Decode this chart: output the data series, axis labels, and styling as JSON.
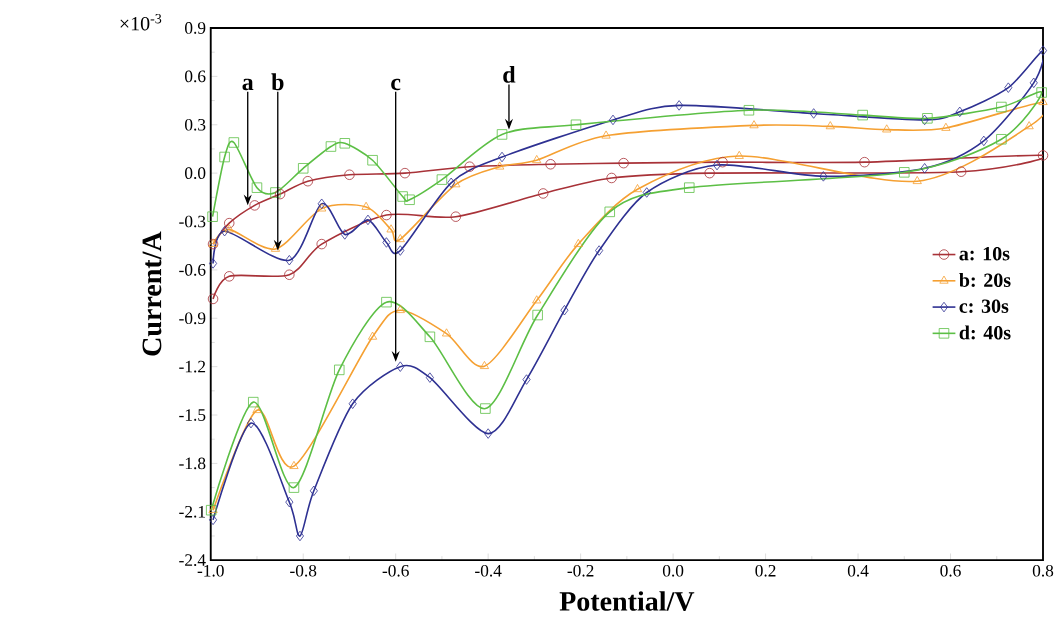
{
  "chart_data": {
    "type": "line",
    "xlabel": "Potential/V",
    "ylabel": "Current/A",
    "xlim": [
      -1.0,
      0.8
    ],
    "ylim": [
      -2.4,
      0.9
    ],
    "xticks": [
      {
        "value": -1.0,
        "label": "-1.0"
      },
      -0.8,
      -0.6,
      -0.4,
      -0.2,
      {
        "value": 0.0,
        "label": "0.0"
      },
      0.2,
      0.4,
      0.6,
      0.8
    ],
    "yticks": [
      -2.4,
      -2.1,
      -1.8,
      -1.5,
      -1.2,
      -0.9,
      -0.6,
      -0.3,
      {
        "value": 0.0,
        "label": "0.0"
      },
      0.3,
      0.6,
      0.9
    ],
    "grid": false,
    "legend": "right",
    "line_style": "solid",
    "annotations": [
      "×10$^{-3}$",
      {
        "text": "a",
        "x": -0.92,
        "y": -0.2
      },
      {
        "text": "b",
        "x": -0.855,
        "y": -0.48
      },
      {
        "text": "c",
        "x": -0.6,
        "y": -1.17
      },
      {
        "text": "d",
        "x": -0.355,
        "y": 0.27
      }
    ],
    "series": [
      {
        "name": "a: 10s",
        "color": "#a83238",
        "marker": "circle",
        "x": [
          -0.995,
          -0.96,
          -0.905,
          -0.85,
          -0.79,
          -0.7,
          -0.58,
          -0.44,
          -0.265,
          -0.107,
          0.107,
          0.414,
          0.8,
          0.623,
          0.079,
          -0.133,
          -0.281,
          -0.47,
          -0.62,
          -0.76,
          -0.83,
          -0.96,
          -0.995
        ],
        "values": [
          -0.44,
          -0.31,
          -0.2,
          -0.13,
          -0.05,
          -0.01,
          0.0,
          0.04,
          0.055,
          0.062,
          0.068,
          0.068,
          0.11,
          0.009,
          0.0,
          -0.03,
          -0.126,
          -0.27,
          -0.26,
          -0.44,
          -0.63,
          -0.64,
          -0.78
        ]
      },
      {
        "name": "b: 20s",
        "color": "#f5a032",
        "marker": "triangle",
        "x": [
          -0.995,
          -0.96,
          -0.86,
          -0.76,
          -0.664,
          -0.61,
          -0.59,
          -0.47,
          -0.375,
          -0.295,
          -0.145,
          0.175,
          0.34,
          0.462,
          0.59,
          0.8,
          0.77,
          0.528,
          0.143,
          -0.077,
          -0.205,
          -0.295,
          -0.408,
          -0.49,
          -0.59,
          -0.65,
          -0.82,
          -0.9,
          -0.995
        ],
        "values": [
          -0.44,
          -0.35,
          -0.47,
          -0.22,
          -0.21,
          -0.35,
          -0.41,
          -0.07,
          0.04,
          0.08,
          0.232,
          0.296,
          0.29,
          0.27,
          0.28,
          0.44,
          0.29,
          -0.05,
          0.106,
          -0.1,
          -0.44,
          -0.79,
          -1.197,
          -0.995,
          -0.85,
          -1.015,
          -1.817,
          -1.47,
          -2.09
        ]
      },
      {
        "name": "c: 30s",
        "color": "#2e3192",
        "marker": "diamond",
        "x": [
          -0.995,
          -0.97,
          -0.83,
          -0.76,
          -0.71,
          -0.66,
          -0.62,
          -0.59,
          -0.48,
          -0.37,
          -0.13,
          0.013,
          0.304,
          0.544,
          0.62,
          0.725,
          0.8,
          0.78,
          0.672,
          0.544,
          0.325,
          0.095,
          -0.057,
          -0.16,
          -0.235,
          -0.317,
          -0.4,
          -0.526,
          -0.59,
          -0.693,
          -0.777,
          -0.807,
          -0.83,
          -0.913,
          -0.995
        ],
        "values": [
          -0.56,
          -0.36,
          -0.54,
          -0.19,
          -0.38,
          -0.29,
          -0.43,
          -0.48,
          -0.06,
          0.1,
          0.33,
          0.42,
          0.37,
          0.33,
          0.38,
          0.53,
          0.76,
          0.56,
          0.2,
          0.03,
          -0.02,
          0.05,
          -0.12,
          -0.48,
          -0.85,
          -1.28,
          -1.615,
          -1.268,
          -1.2,
          -1.43,
          -1.97,
          -2.25,
          -2.04,
          -1.55,
          -2.15
        ]
      },
      {
        "name": "d: 40s",
        "color": "#5cbf45",
        "marker": "square",
        "x": [
          -0.996,
          -0.97,
          -0.95,
          -0.9,
          -0.86,
          -0.8,
          -0.74,
          -0.71,
          -0.65,
          -0.585,
          -0.57,
          -0.5,
          -0.37,
          -0.21,
          0.164,
          0.41,
          0.55,
          0.71,
          0.797,
          0.71,
          0.5,
          0.035,
          -0.137,
          -0.293,
          -0.406,
          -0.526,
          -0.62,
          -0.722,
          -0.82,
          -0.908,
          -0.999
        ],
        "values": [
          -0.27,
          0.1,
          0.19,
          -0.09,
          -0.12,
          0.03,
          0.165,
          0.185,
          0.08,
          -0.145,
          -0.165,
          -0.04,
          0.24,
          0.3,
          0.39,
          0.36,
          0.34,
          0.41,
          0.5,
          0.21,
          0.005,
          -0.09,
          -0.24,
          -0.88,
          -1.46,
          -1.015,
          -0.8,
          -1.22,
          -1.95,
          -1.42,
          -2.09
        ]
      }
    ]
  }
}
